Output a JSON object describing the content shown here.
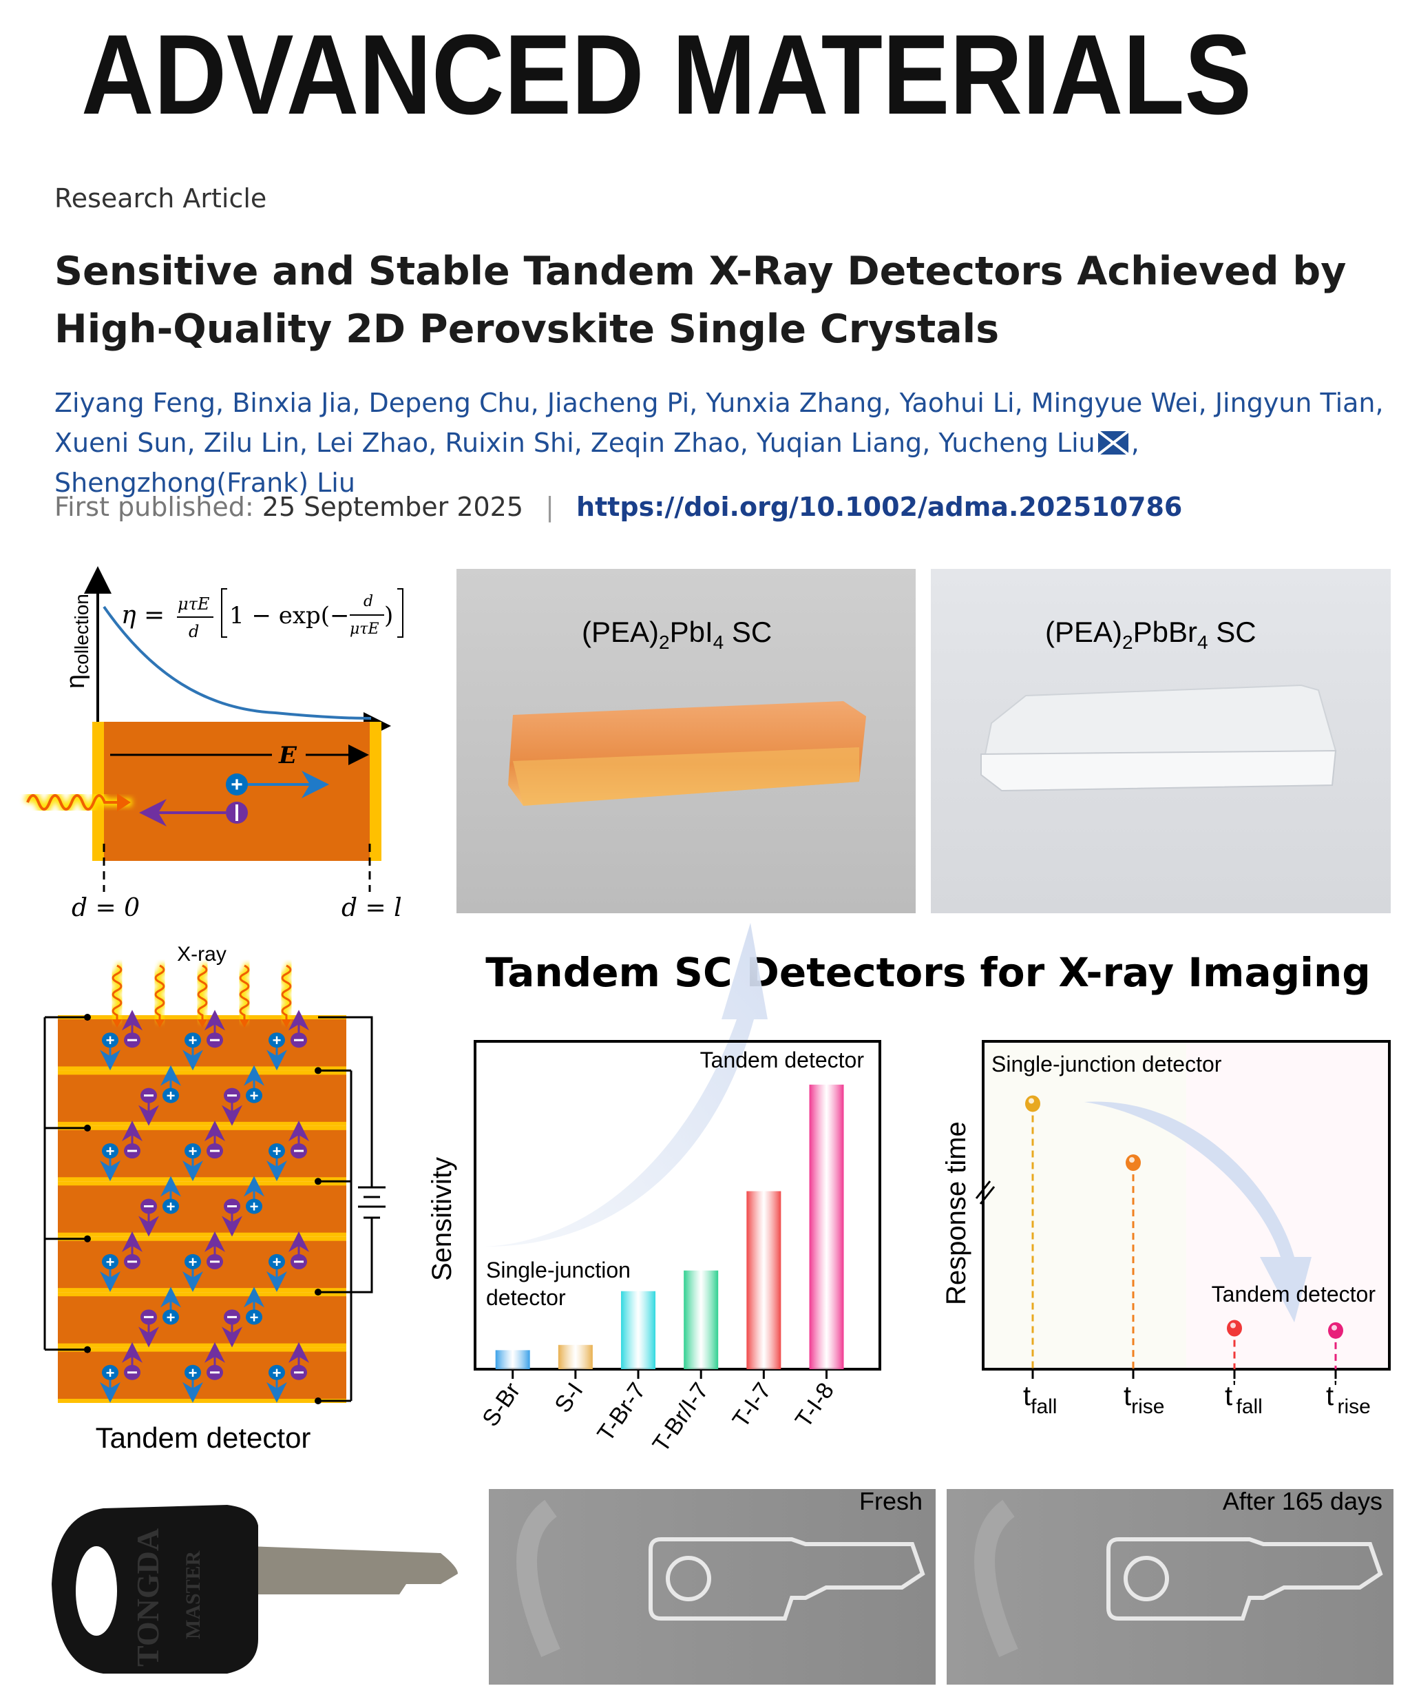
{
  "journal": {
    "logo_text": "ADVANCED MATERIALS"
  },
  "article": {
    "type": "Research Article",
    "title_line1": "Sensitive and Stable Tandem X-Ray Detectors Achieved by",
    "title_line2": "High-Quality 2D Perovskite Single Crystals",
    "authors": [
      "Ziyang Feng",
      "Binxia Jia",
      "Depeng Chu",
      "Jiacheng Pi",
      "Yunxia Zhang",
      "Yaohui Li",
      "Mingyue Wei",
      "Jingyun Tian",
      "Xueni Sun",
      "Zilu Lin",
      "Lei Zhao",
      "Ruixin Shi",
      "Zeqin Zhao",
      "Yuqian Liang",
      "Yucheng Liu",
      "Shengzhong(Frank) Liu"
    ],
    "corresponding_icon": "envelope-icon",
    "published_label": "First published:",
    "published_date": "25 September 2025",
    "doi": "https://doi.org/10.1002/adma.202510786"
  },
  "figure": {
    "collection_panel": {
      "ylabel": "η",
      "ylabel_sub": "collection",
      "equation_lhs": "η =",
      "equation_frac_num": "μτE",
      "equation_frac_den": "d",
      "equation_mid": "1 − exp(−",
      "equation_inner_num": "d",
      "equation_inner_den": "μτE",
      "equation_close": ")",
      "field_label": "E",
      "left_label": "d = 0",
      "right_label": "d = l",
      "colors": {
        "crystal": "#e06c0c",
        "electrode": "#ffc000",
        "curve": "#2e75b6",
        "hole": "#0070c0",
        "electron": "#7030a0"
      }
    },
    "photo1_label": "(PEA)",
    "photo1_sub1": "2",
    "photo1_mid": "PbI",
    "photo1_sub2": "4",
    "photo1_end": " SC",
    "photo2_label": "(PEA)",
    "photo2_sub1": "2",
    "photo2_mid": "PbBr",
    "photo2_sub2": "4",
    "photo2_end": " SC",
    "headline": "Tandem SC Detectors for X-ray Imaging",
    "tandem_panel": {
      "xray_label": "X-ray",
      "caption": "Tandem detector",
      "layers": 7
    },
    "imaging": {
      "fresh_label": "Fresh",
      "aged_label": "After 165 days",
      "key_text1": "TONGDA",
      "key_text2": "MASTER"
    }
  },
  "chart_data": [
    {
      "type": "bar",
      "ylabel": "Sensitivity",
      "xlabel": "",
      "categories": [
        "S-Br",
        "S-I",
        "T-Br-7",
        "T-Br/I-7",
        "T-I-7",
        "T-I-8"
      ],
      "values": [
        5.8,
        7.4,
        23.8,
        30.1,
        54.3,
        86.8
      ],
      "ylim": [
        0,
        100
      ],
      "colors": [
        "#3aa0e8",
        "#e8b050",
        "#30d8e0",
        "#30d090",
        "#f04848",
        "#f03890"
      ],
      "annotations": {
        "low": "Single-junction",
        "low2": "detector",
        "high": "Tandem detector"
      },
      "grid": false
    },
    {
      "type": "scatter",
      "ylabel": "Response time",
      "categories": [
        "t_fall",
        "t_rise",
        "t'_fall",
        "t'_rise"
      ],
      "tick_main": [
        "t",
        "t",
        "t",
        "t"
      ],
      "tick_prime": [
        "",
        "",
        "'",
        "'"
      ],
      "tick_sub": [
        "fall",
        "rise",
        "fall",
        "rise"
      ],
      "values": [
        0.81,
        0.63,
        0.125,
        0.118
      ],
      "ylim": [
        0,
        1
      ],
      "colors": [
        "#e8a820",
        "#f08020",
        "#f03838",
        "#e8207a"
      ],
      "annotations": {
        "single": "Single-junction detector",
        "tandem": "Tandem detector"
      },
      "axis_break": true,
      "grid": false
    }
  ]
}
